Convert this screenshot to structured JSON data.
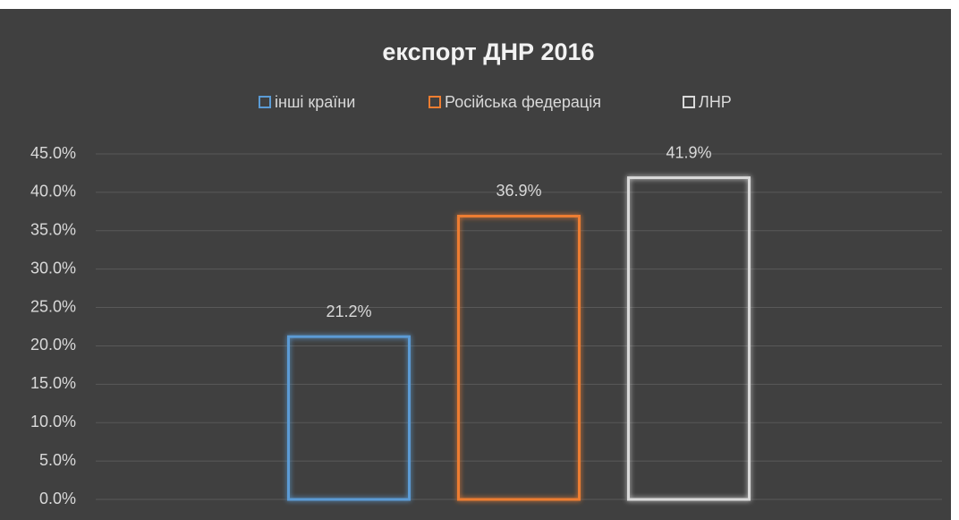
{
  "chart_data": {
    "type": "bar",
    "title": "експорт ДНР 2016",
    "series": [
      {
        "name": "інші країни",
        "color": "#5b9bd5",
        "values": [
          21.2
        ],
        "value_labels": [
          "21.2%"
        ]
      },
      {
        "name": "Російська федерація",
        "color": "#ed7d31",
        "values": [
          36.9
        ],
        "value_labels": [
          "36.9%"
        ]
      },
      {
        "name": "ЛНР",
        "color": "#d9d9d9",
        "values": [
          41.9
        ],
        "value_labels": [
          "41.9%"
        ]
      }
    ],
    "ylim": [
      0,
      45
    ],
    "yticks": [
      {
        "value": 0,
        "label": "0.0%"
      },
      {
        "value": 5,
        "label": "5.0%"
      },
      {
        "value": 10,
        "label": "10.0%"
      },
      {
        "value": 15,
        "label": "15.0%"
      },
      {
        "value": 20,
        "label": "20.0%"
      },
      {
        "value": 25,
        "label": "25.0%"
      },
      {
        "value": 30,
        "label": "30.0%"
      },
      {
        "value": 35,
        "label": "35.0%"
      },
      {
        "value": 40,
        "label": "40.0%"
      },
      {
        "value": 45,
        "label": "45.0%"
      }
    ],
    "grid": true,
    "legend": "top"
  }
}
